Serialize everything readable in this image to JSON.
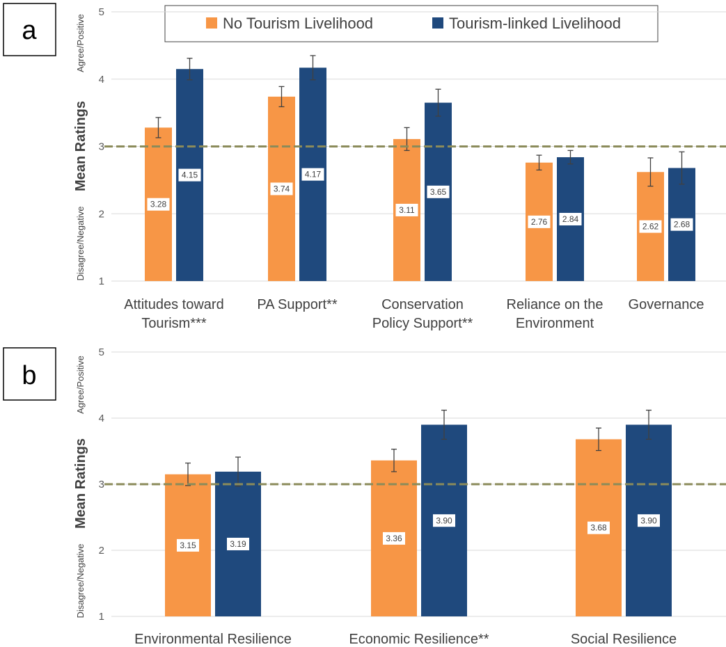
{
  "legend": {
    "series": [
      {
        "name": "No Tourism Livelihood",
        "color": "#F79646"
      },
      {
        "name": "Tourism-linked Livelihood",
        "color": "#1F497D"
      }
    ]
  },
  "reference_line": {
    "value": 3,
    "color": "#8B8B5A",
    "style": "dashed"
  },
  "chart_data": [
    {
      "type": "bar",
      "panel": "a",
      "ylabel": "Mean Ratings",
      "ylabel_top": "Agree/Positive",
      "ylabel_bottom": "Disagree/Negative",
      "ylim": [
        1,
        5
      ],
      "yticks": [
        1,
        2,
        3,
        4,
        5
      ],
      "grid": true,
      "categories": [
        [
          "Attitudes toward",
          "Tourism***"
        ],
        [
          "PA Support**"
        ],
        [
          "Conservation",
          "Policy Support**"
        ],
        [
          "Reliance on the",
          "Environment"
        ],
        [
          "Governance"
        ]
      ],
      "series": [
        {
          "name": "No Tourism Livelihood",
          "values": [
            3.28,
            3.74,
            3.11,
            2.76,
            2.62
          ],
          "labels": [
            "3.28",
            "3.74",
            "3.11",
            "2.76",
            "2.62"
          ],
          "errors": [
            0.15,
            0.15,
            0.17,
            0.11,
            0.21
          ]
        },
        {
          "name": "Tourism-linked Livelihood",
          "values": [
            4.15,
            4.17,
            3.65,
            2.84,
            2.68
          ],
          "labels": [
            "4.15",
            "4.17",
            "3.65",
            "2.84",
            "2.68"
          ],
          "errors": [
            0.16,
            0.18,
            0.2,
            0.1,
            0.24
          ]
        }
      ]
    },
    {
      "type": "bar",
      "panel": "b",
      "ylabel": "Mean Ratings",
      "ylabel_top": "Agree/Positive",
      "ylabel_bottom": "Disagree/Negative",
      "ylim": [
        1,
        5
      ],
      "yticks": [
        1,
        2,
        3,
        4,
        5
      ],
      "grid": true,
      "categories": [
        [
          "Environmental Resilience"
        ],
        [
          "Economic Resilience**"
        ],
        [
          "Social Resilience"
        ]
      ],
      "series": [
        {
          "name": "No Tourism Livelihood",
          "values": [
            3.15,
            3.36,
            3.68
          ],
          "labels": [
            "3.15",
            "3.36",
            "3.68"
          ],
          "errors": [
            0.17,
            0.17,
            0.17
          ]
        },
        {
          "name": "Tourism-linked Livelihood",
          "values": [
            3.19,
            3.9,
            3.9
          ],
          "labels": [
            "3.19",
            "3.90",
            "3.90"
          ],
          "errors": [
            0.22,
            0.22,
            0.22
          ]
        }
      ]
    }
  ]
}
